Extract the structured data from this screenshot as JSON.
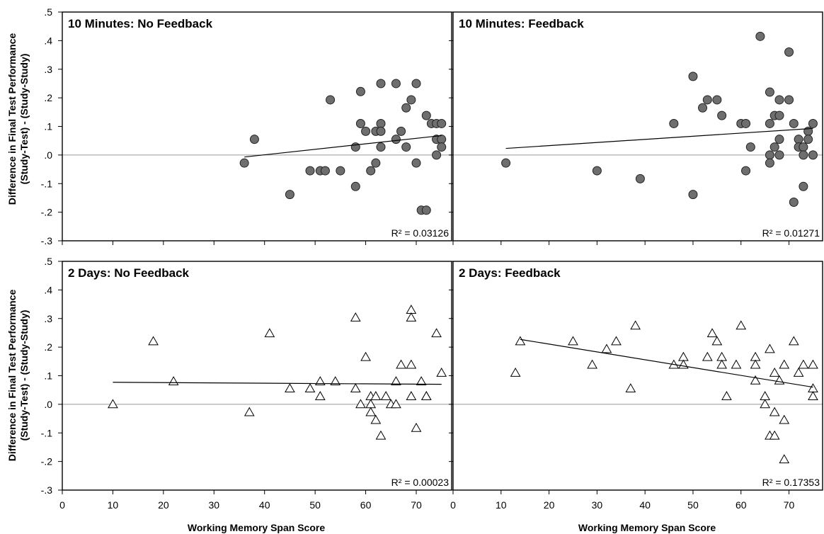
{
  "y_axis_title_line1": "Difference in Final Test Performance",
  "y_axis_title_line2": "(Study-Test) - (Study-Study)",
  "x_axis_title": "Working Memory Span Score",
  "chart_data": [
    {
      "type": "scatter",
      "title": "10 Minutes: No Feedback",
      "r2_label": "R² = 0.03126",
      "marker": "circle",
      "xlim": [
        0,
        77
      ],
      "ylim": [
        -0.3,
        0.5
      ],
      "xticks": [
        0,
        10,
        20,
        30,
        40,
        50,
        60,
        70
      ],
      "yticks": [
        -0.3,
        -0.2,
        -0.1,
        0.0,
        0.1,
        0.2,
        0.3,
        0.4,
        0.5
      ],
      "ytick_labels": [
        "-.3",
        "-.2",
        "-.1",
        ".0",
        ".1",
        ".2",
        ".3",
        ".4",
        ".5"
      ],
      "trendline": {
        "x": [
          36,
          75
        ],
        "y": [
          -0.007,
          0.068
        ]
      },
      "points": [
        [
          36,
          -0.028
        ],
        [
          38,
          0.055
        ],
        [
          45,
          -0.138
        ],
        [
          49,
          -0.055
        ],
        [
          51,
          -0.055
        ],
        [
          52,
          -0.055
        ],
        [
          53,
          0.193
        ],
        [
          55,
          -0.055
        ],
        [
          58,
          0.028
        ],
        [
          58,
          -0.11
        ],
        [
          59,
          0.222
        ],
        [
          59,
          0.11
        ],
        [
          60,
          0.083
        ],
        [
          61,
          -0.055
        ],
        [
          62,
          -0.028
        ],
        [
          62,
          0.083
        ],
        [
          63,
          0.25
        ],
        [
          63,
          0.11
        ],
        [
          63,
          0.083
        ],
        [
          63,
          0.028
        ],
        [
          66,
          0.25
        ],
        [
          66,
          0.055
        ],
        [
          67,
          0.083
        ],
        [
          68,
          0.165
        ],
        [
          68,
          0.028
        ],
        [
          69,
          0.193
        ],
        [
          70,
          0.25
        ],
        [
          70,
          -0.028
        ],
        [
          71,
          -0.193
        ],
        [
          72,
          -0.193
        ],
        [
          72,
          0.138
        ],
        [
          73,
          0.11
        ],
        [
          74,
          0.11
        ],
        [
          74,
          0.0
        ],
        [
          74,
          0.055
        ],
        [
          75,
          0.11
        ],
        [
          75,
          0.055
        ],
        [
          75,
          0.028
        ]
      ]
    },
    {
      "type": "scatter",
      "title": "10 Minutes: Feedback",
      "r2_label": "R² = 0.01271",
      "marker": "circle",
      "xlim": [
        0,
        77
      ],
      "ylim": [
        -0.3,
        0.5
      ],
      "xticks": [
        0,
        10,
        20,
        30,
        40,
        50,
        60,
        70
      ],
      "yticks": [
        -0.3,
        -0.2,
        -0.1,
        0.0,
        0.1,
        0.2,
        0.3,
        0.4,
        0.5
      ],
      "trendline": {
        "x": [
          11,
          75
        ],
        "y": [
          0.023,
          0.093
        ]
      },
      "points": [
        [
          11,
          -0.028
        ],
        [
          30,
          -0.055
        ],
        [
          39,
          -0.083
        ],
        [
          46,
          0.11
        ],
        [
          50,
          0.275
        ],
        [
          50,
          -0.138
        ],
        [
          52,
          0.165
        ],
        [
          53,
          0.193
        ],
        [
          55,
          0.193
        ],
        [
          56,
          0.138
        ],
        [
          60,
          0.11
        ],
        [
          61,
          0.11
        ],
        [
          61,
          -0.055
        ],
        [
          62,
          0.028
        ],
        [
          64,
          0.415
        ],
        [
          66,
          0.22
        ],
        [
          66,
          0.11
        ],
        [
          66,
          0.0
        ],
        [
          66,
          -0.028
        ],
        [
          67,
          0.138
        ],
        [
          67,
          0.028
        ],
        [
          68,
          0.193
        ],
        [
          68,
          0.138
        ],
        [
          68,
          0.055
        ],
        [
          68,
          0.0
        ],
        [
          70,
          0.36
        ],
        [
          70,
          0.193
        ],
        [
          71,
          0.11
        ],
        [
          71,
          -0.165
        ],
        [
          72,
          0.055
        ],
        [
          72,
          0.028
        ],
        [
          73,
          0.028
        ],
        [
          73,
          0.0
        ],
        [
          73,
          -0.11
        ],
        [
          74,
          0.083
        ],
        [
          74,
          0.055
        ],
        [
          75,
          0.11
        ],
        [
          75,
          0.0
        ]
      ]
    },
    {
      "type": "scatter",
      "title": "2 Days: No Feedback",
      "r2_label": "R² = 0.00023",
      "marker": "triangle",
      "xlim": [
        0,
        77
      ],
      "ylim": [
        -0.3,
        0.5
      ],
      "xticks": [
        0,
        10,
        20,
        30,
        40,
        50,
        60,
        70
      ],
      "xtick_labels": [
        "0",
        "10",
        "20",
        "30",
        "40",
        "50",
        "60",
        "70"
      ],
      "yticks": [
        -0.3,
        -0.2,
        -0.1,
        0.0,
        0.1,
        0.2,
        0.3,
        0.4,
        0.5
      ],
      "ytick_labels": [
        "-.3",
        "-.2",
        "-.1",
        ".0",
        ".1",
        ".2",
        ".3",
        ".4",
        ".5"
      ],
      "trendline": {
        "x": [
          10,
          75
        ],
        "y": [
          0.077,
          0.07
        ]
      },
      "points": [
        [
          10,
          0.0
        ],
        [
          18,
          0.22
        ],
        [
          22,
          0.08
        ],
        [
          37,
          -0.028
        ],
        [
          41,
          0.248
        ],
        [
          45,
          0.055
        ],
        [
          49,
          0.055
        ],
        [
          51,
          0.08
        ],
        [
          51,
          0.028
        ],
        [
          54,
          0.08
        ],
        [
          58,
          0.303
        ],
        [
          58,
          0.055
        ],
        [
          59,
          0.0
        ],
        [
          60,
          0.165
        ],
        [
          61,
          0.028
        ],
        [
          61,
          0.0
        ],
        [
          61,
          -0.028
        ],
        [
          62,
          0.028
        ],
        [
          62,
          -0.055
        ],
        [
          63,
          -0.11
        ],
        [
          64,
          0.028
        ],
        [
          65,
          0.0
        ],
        [
          66,
          0.08
        ],
        [
          66,
          0.0
        ],
        [
          67,
          0.138
        ],
        [
          69,
          0.33
        ],
        [
          69,
          0.303
        ],
        [
          69,
          0.138
        ],
        [
          69,
          0.028
        ],
        [
          70,
          -0.083
        ],
        [
          71,
          0.08
        ],
        [
          72,
          0.028
        ],
        [
          72,
          0.028
        ],
        [
          74,
          0.248
        ],
        [
          75,
          0.11
        ]
      ]
    },
    {
      "type": "scatter",
      "title": "2 Days: Feedback",
      "r2_label": "R² = 0.17353",
      "marker": "triangle",
      "xlim": [
        0,
        77
      ],
      "ylim": [
        -0.3,
        0.5
      ],
      "xticks": [
        0,
        10,
        20,
        30,
        40,
        50,
        60,
        70
      ],
      "xtick_labels": [
        "0",
        "10",
        "20",
        "30",
        "40",
        "50",
        "60",
        "70"
      ],
      "yticks": [
        -0.3,
        -0.2,
        -0.1,
        0.0,
        0.1,
        0.2,
        0.3,
        0.4,
        0.5
      ],
      "trendline": {
        "x": [
          14,
          75
        ],
        "y": [
          0.227,
          0.06
        ]
      },
      "points": [
        [
          13,
          0.11
        ],
        [
          14,
          0.22
        ],
        [
          25,
          0.22
        ],
        [
          29,
          0.138
        ],
        [
          32,
          0.193
        ],
        [
          34,
          0.22
        ],
        [
          37,
          0.055
        ],
        [
          38,
          0.275
        ],
        [
          46,
          0.138
        ],
        [
          48,
          0.165
        ],
        [
          48,
          0.138
        ],
        [
          53,
          0.165
        ],
        [
          54,
          0.248
        ],
        [
          55,
          0.22
        ],
        [
          56,
          0.165
        ],
        [
          56,
          0.138
        ],
        [
          57,
          0.028
        ],
        [
          59,
          0.138
        ],
        [
          60,
          0.275
        ],
        [
          63,
          0.165
        ],
        [
          63,
          0.138
        ],
        [
          63,
          0.083
        ],
        [
          65,
          0.028
        ],
        [
          65,
          0.0
        ],
        [
          66,
          0.193
        ],
        [
          66,
          -0.11
        ],
        [
          67,
          0.11
        ],
        [
          67,
          -0.028
        ],
        [
          67,
          -0.11
        ],
        [
          68,
          0.083
        ],
        [
          69,
          0.138
        ],
        [
          69,
          -0.055
        ],
        [
          69,
          -0.193
        ],
        [
          71,
          0.22
        ],
        [
          72,
          0.11
        ],
        [
          73,
          0.138
        ],
        [
          75,
          0.138
        ],
        [
          75,
          0.055
        ],
        [
          75,
          0.028
        ]
      ]
    }
  ]
}
